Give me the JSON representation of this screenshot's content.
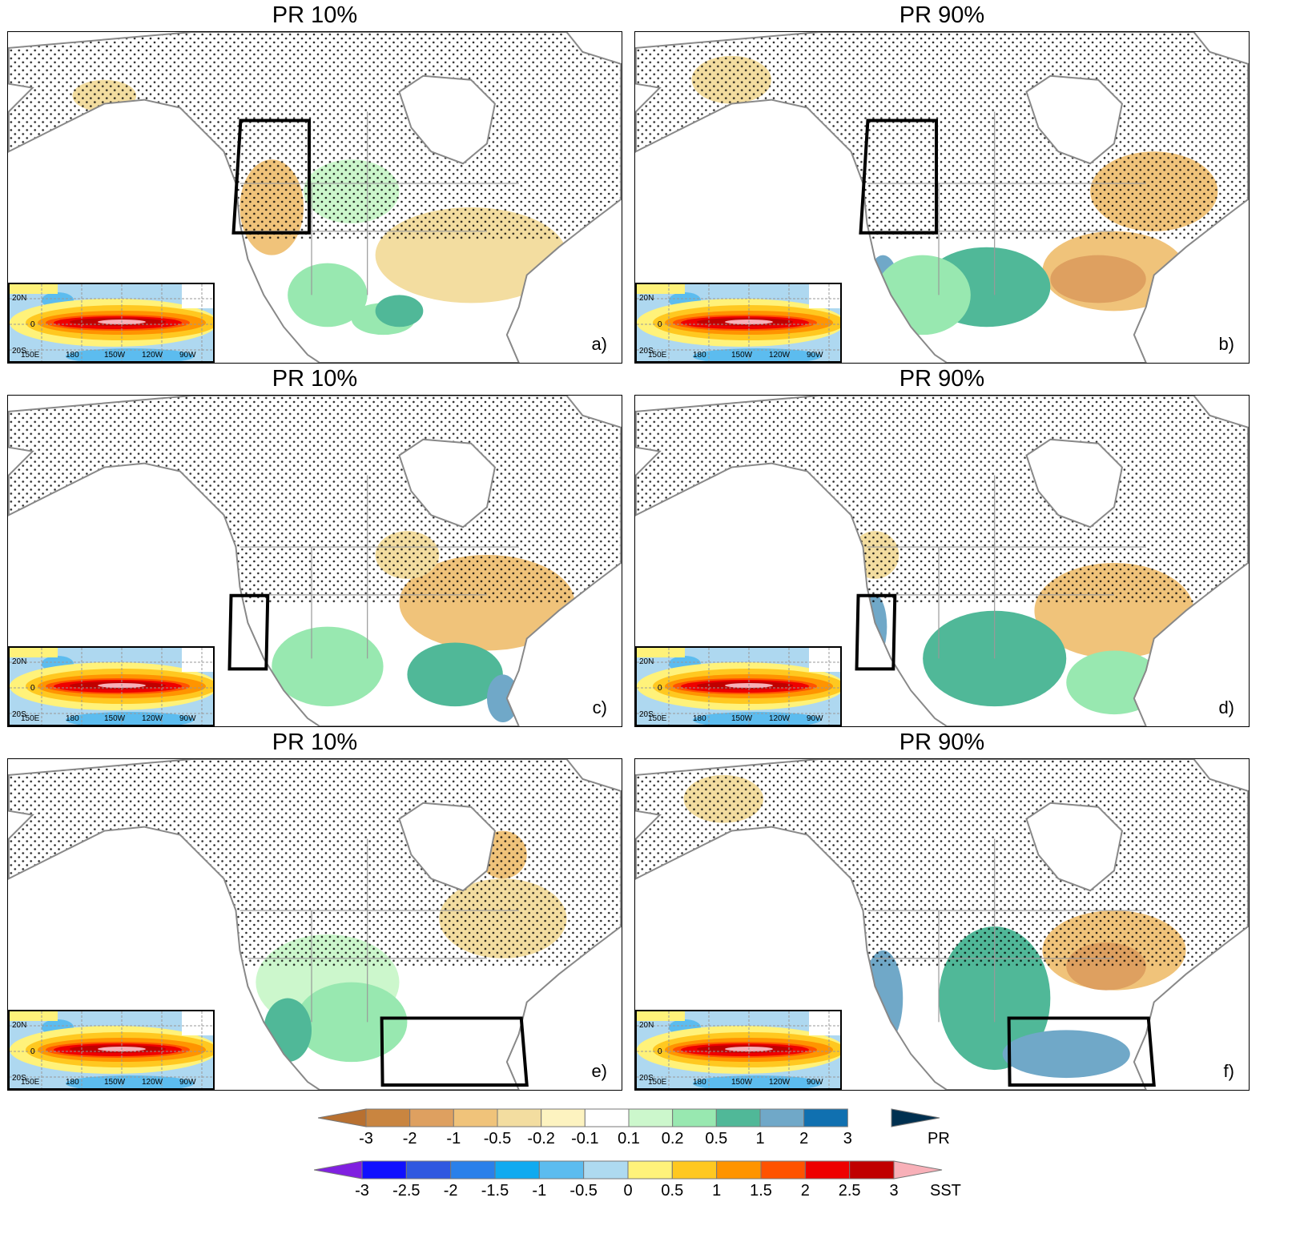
{
  "panels": [
    {
      "title": "PR 10%",
      "label": "a)"
    },
    {
      "title": "PR 90%",
      "label": "b)"
    },
    {
      "title": "PR 10%",
      "label": "c)"
    },
    {
      "title": "PR 90%",
      "label": "d)"
    },
    {
      "title": "PR 10%",
      "label": "e)"
    },
    {
      "title": "PR 90%",
      "label": "f)"
    }
  ],
  "inset": {
    "lat_labels": [
      "20N",
      "0",
      "20S"
    ],
    "lon_labels": [
      "150E",
      "180",
      "150W",
      "120W",
      "90W"
    ]
  },
  "pr_colorbar": {
    "name": "PR",
    "labels": [
      "-3",
      "-2",
      "-1",
      "-0.5",
      "-0.2",
      "-0.1",
      "0.1",
      "0.2",
      "0.5",
      "1",
      "2",
      "3"
    ],
    "colors": [
      "#c98540",
      "#dea060",
      "#f0c37a",
      "#f3dda0",
      "#fdf3c0",
      "#ffffff",
      "#ccf7cc",
      "#98e8b0",
      "#50b898",
      "#70a8c8",
      "#1070b0"
    ],
    "low_color": "#b87030",
    "high_color": "#003050"
  },
  "sst_colorbar": {
    "name": "SST",
    "labels": [
      "-3",
      "-2.5",
      "-2",
      "-1.5",
      "-1",
      "-0.5",
      "0",
      "0.5",
      "1",
      "1.5",
      "2",
      "2.5",
      "3"
    ],
    "colors": [
      "#1010ff",
      "#3058e0",
      "#2a80ea",
      "#10aaf0",
      "#5cbcef",
      "#aedaf0",
      "#fff27a",
      "#ffc820",
      "#ff9400",
      "#ff5200",
      "#ee0000",
      "#c00000"
    ],
    "low_color": "#8020e0",
    "high_color": "#f8b0b8"
  }
}
